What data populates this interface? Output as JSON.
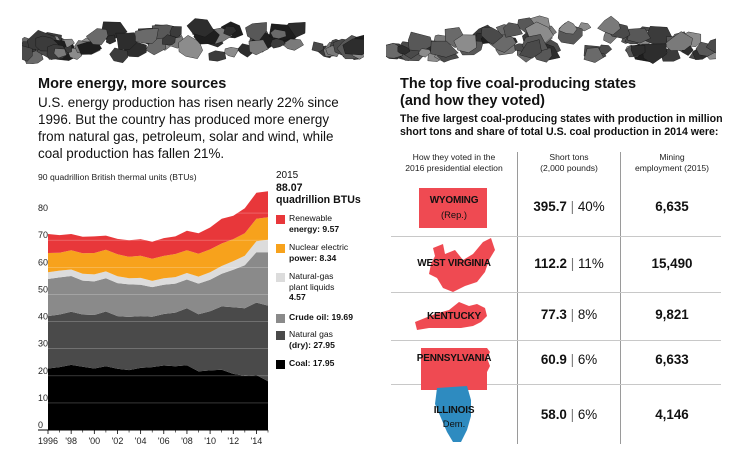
{
  "left_panel": {
    "title": "More energy, more sources",
    "body_lines": [
      "U.S. energy production has risen nearly 22% since",
      "1996. But the country has produced more energy",
      "from natural gas, petroleum, solar and wind, while",
      "coal production has fallen 21%."
    ],
    "legend_total": {
      "year": "2015",
      "value": "88.07",
      "unit": "quadrillion BTUs"
    },
    "legend": [
      {
        "lines": [
          "Renewable",
          "energy: 9.57"
        ],
        "color": "#e8373a"
      },
      {
        "lines": [
          "Nuclear electric",
          "power: 8.34"
        ],
        "color": "#f7a21c"
      },
      {
        "lines": [
          "Natural-gas",
          "plant liquids",
          "4.57"
        ],
        "color": "#dcdcdc"
      },
      {
        "lines": [
          "Crude oil: 19.69"
        ],
        "color": "#8a8a8a"
      },
      {
        "lines": [
          "Natural gas",
          "(dry): 27.95"
        ],
        "color": "#4a4a4a"
      },
      {
        "lines": [
          "Coal: 17.95"
        ],
        "color": "#000000"
      }
    ]
  },
  "chart_data": {
    "type": "area",
    "stacked": true,
    "unit_label": "90 quadrillion British thermal units (BTUs)",
    "x": [
      1996,
      1997,
      1998,
      1999,
      2000,
      2001,
      2002,
      2003,
      2004,
      2005,
      2006,
      2007,
      2008,
      2009,
      2010,
      2011,
      2012,
      2013,
      2014,
      2015
    ],
    "x_tick_labels": [
      "1996",
      "'98",
      "'00",
      "'02",
      "'04",
      "'06",
      "'08",
      "'10",
      "'12",
      "'14"
    ],
    "y_ticks": [
      "0",
      "10",
      "20",
      "30",
      "40",
      "50",
      "60",
      "70",
      "80"
    ],
    "ylim": [
      0,
      90
    ],
    "series": [
      {
        "name": "Coal",
        "color": "#000000",
        "values": [
          22.7,
          23.2,
          24.0,
          23.3,
          22.7,
          23.5,
          22.6,
          22.1,
          22.9,
          23.2,
          23.8,
          23.5,
          23.9,
          21.6,
          22.0,
          22.2,
          20.7,
          20.0,
          20.3,
          17.95
        ]
      },
      {
        "name": "Natural gas (dry)",
        "color": "#4a4a4a",
        "values": [
          19.3,
          19.4,
          19.6,
          19.3,
          19.7,
          20.2,
          19.4,
          19.6,
          19.1,
          18.6,
          19.0,
          19.8,
          21.0,
          21.1,
          21.8,
          23.4,
          24.6,
          24.9,
          26.7,
          27.95
        ]
      },
      {
        "name": "Crude oil",
        "color": "#8a8a8a",
        "values": [
          13.7,
          13.7,
          13.2,
          12.5,
          12.4,
          12.3,
          12.2,
          12.0,
          11.6,
          10.9,
          10.8,
          10.7,
          10.6,
          11.3,
          11.6,
          12.0,
          13.8,
          15.9,
          18.6,
          19.69
        ]
      },
      {
        "name": "Natural-gas plant liquids",
        "color": "#dcdcdc",
        "values": [
          2.5,
          2.5,
          2.4,
          2.5,
          2.6,
          2.5,
          2.5,
          2.3,
          2.5,
          2.3,
          2.4,
          2.4,
          2.4,
          2.6,
          2.8,
          2.9,
          3.2,
          3.5,
          4.0,
          4.57
        ]
      },
      {
        "name": "Nuclear electric power",
        "color": "#f7a21c",
        "values": [
          7.1,
          6.6,
          7.1,
          7.6,
          7.9,
          8.0,
          8.1,
          7.9,
          8.2,
          8.2,
          8.2,
          8.5,
          8.4,
          8.4,
          8.4,
          8.3,
          8.1,
          8.3,
          8.3,
          8.34
        ]
      },
      {
        "name": "Renewable energy",
        "color": "#e8373a",
        "values": [
          7.0,
          6.5,
          6.0,
          6.1,
          6.1,
          5.2,
          5.7,
          6.1,
          6.1,
          6.2,
          6.6,
          6.5,
          7.2,
          7.6,
          8.1,
          9.1,
          8.6,
          9.2,
          9.6,
          9.57
        ]
      }
    ]
  },
  "right_panel": {
    "title_lines": [
      "The top five coal-producing states",
      "(and how they voted)"
    ],
    "subtitle_lines": [
      "The five largest coal-producing states with production in million",
      "short tons and share of total U.S. coal production in 2014 were:"
    ],
    "columns": [
      {
        "lines": [
          "How they voted in the",
          "2016 presidential election"
        ]
      },
      {
        "lines": [
          "Short tons",
          "(2,000 pounds)"
        ]
      },
      {
        "lines": [
          "Mining",
          "employment (2015)"
        ]
      }
    ],
    "separator": "|",
    "states": [
      {
        "name": "WYOMING",
        "party": "(Rep.)",
        "shape_color": "#ef4a52",
        "tons": "395.7",
        "share": "40%",
        "employment": "6,635"
      },
      {
        "name": "WEST VIRGINIA",
        "party": "",
        "shape_color": "#ef4a52",
        "tons": "112.2",
        "share": "11%",
        "employment": "15,490"
      },
      {
        "name": "KENTUCKY",
        "party": "",
        "shape_color": "#ef4a52",
        "tons": "77.3",
        "share": "8%",
        "employment": "9,821"
      },
      {
        "name": "PENNSYLVANIA",
        "party": "",
        "shape_color": "#ef4a52",
        "tons": "60.9",
        "share": "6%",
        "employment": "6,633"
      },
      {
        "name": "ILLINOIS",
        "party": "Dem.",
        "shape_color": "#2e8bc0",
        "tons": "58.0",
        "share": "6%",
        "employment": "4,146"
      }
    ]
  }
}
